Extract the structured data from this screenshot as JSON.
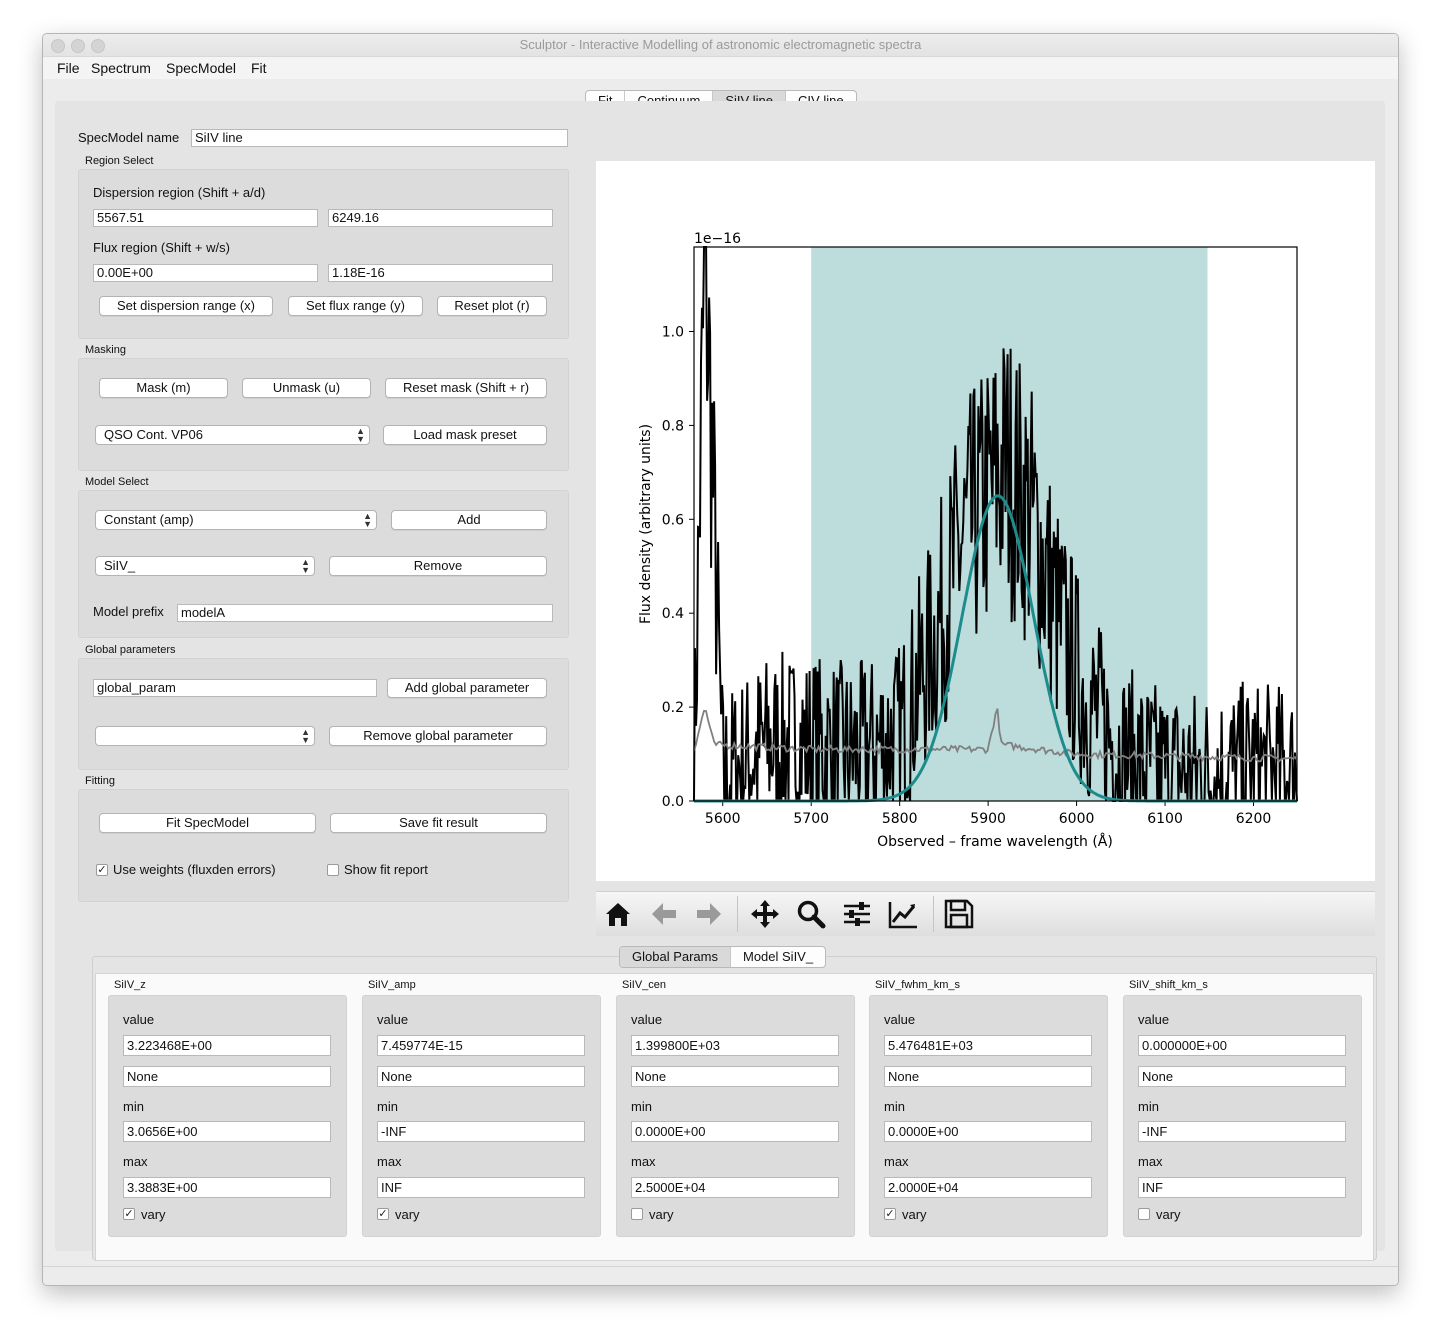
{
  "window": {
    "title": "Sculptor - Interactive Modelling of astronomic electromagnetic spectra"
  },
  "menu": [
    "File",
    "Spectrum",
    "SpecModel",
    "Fit"
  ],
  "tabs": [
    {
      "label": "Fit",
      "active": false
    },
    {
      "label": "Continuum",
      "active": false
    },
    {
      "label": "SiIV line",
      "active": true
    },
    {
      "label": "CIV line",
      "active": false
    }
  ],
  "specmodel": {
    "name_label": "SpecModel name",
    "name_value": "SiIV line"
  },
  "region": {
    "group_title": "Region Select",
    "dispersion_label": "Dispersion region (Shift + a/d)",
    "disp_min": "5567.51",
    "disp_max": "6249.16",
    "flux_label": "Flux region (Shift + w/s)",
    "flux_min": "0.00E+00",
    "flux_max": "1.18E-16",
    "set_disp_btn": "Set dispersion range (x)",
    "set_flux_btn": "Set flux range (y)",
    "reset_plot_btn": "Reset plot (r)"
  },
  "masking": {
    "group_title": "Masking",
    "mask_btn": "Mask (m)",
    "unmask_btn": "Unmask (u)",
    "reset_mask_btn": "Reset mask (Shift + r)",
    "preset_select": "QSO Cont. VP06",
    "load_preset_btn": "Load mask preset"
  },
  "model_select": {
    "group_title": "Model Select",
    "model_select": "Constant (amp)",
    "add_btn": "Add",
    "model_list_select": "SiIV_",
    "remove_btn": "Remove",
    "prefix_label": "Model prefix",
    "prefix_value": "modelA"
  },
  "global_params": {
    "group_title": "Global parameters",
    "param_name": "global_param",
    "add_btn": "Add global parameter",
    "param_select": "",
    "remove_btn": "Remove global parameter"
  },
  "fitting": {
    "group_title": "Fitting",
    "fit_btn": "Fit SpecModel",
    "save_btn": "Save fit result",
    "use_weights_label": "Use weights (fluxden errors)",
    "use_weights_checked": true,
    "show_report_label": "Show fit report",
    "show_report_checked": false
  },
  "toolbar": {
    "icons": [
      "home-icon",
      "back-arrow-icon",
      "forward-arrow-icon",
      "pan-icon",
      "zoom-icon",
      "configure-subplots-icon",
      "edit-axis-icon",
      "save-icon"
    ]
  },
  "bottom_tabs": [
    {
      "label": "Global Params",
      "active": true
    },
    {
      "label": "Model SiIV_",
      "active": false
    }
  ],
  "params": [
    {
      "title": "SiIV_z",
      "value_label": "value",
      "value": "3.223468E+00",
      "expr": "None",
      "min_label": "min",
      "min": "3.0656E+00",
      "max_label": "max",
      "max": "3.3883E+00",
      "vary_label": "vary",
      "vary": true
    },
    {
      "title": "SiIV_amp",
      "value_label": "value",
      "value": "7.459774E-15",
      "expr": "None",
      "min_label": "min",
      "min": "-INF",
      "max_label": "max",
      "max": "INF",
      "vary_label": "vary",
      "vary": true
    },
    {
      "title": "SiIV_cen",
      "value_label": "value",
      "value": "1.399800E+03",
      "expr": "None",
      "min_label": "min",
      "min": "0.0000E+00",
      "max_label": "max",
      "max": "2.5000E+04",
      "vary_label": "vary",
      "vary": false
    },
    {
      "title": "SiIV_fwhm_km_s",
      "value_label": "value",
      "value": "5.476481E+03",
      "expr": "None",
      "min_label": "min",
      "min": "0.0000E+00",
      "max_label": "max",
      "max": "2.0000E+04",
      "vary_label": "vary",
      "vary": true
    },
    {
      "title": "SiIV_shift_km_s",
      "value_label": "value",
      "value": "0.000000E+00",
      "expr": "None",
      "min_label": "min",
      "min": "-INF",
      "max_label": "max",
      "max": "INF",
      "vary_label": "vary",
      "vary": false
    }
  ],
  "chart_data": {
    "type": "line",
    "offset_text": "1e−16",
    "xlabel": "Observed – frame wavelength (Å)",
    "ylabel": "Flux density (arbitrary units)",
    "xlim": [
      5567.51,
      6249.16
    ],
    "ylim": [
      0.0,
      1.18
    ],
    "x_ticks": [
      5600,
      5700,
      5800,
      5900,
      6000,
      6100,
      6200
    ],
    "y_ticks": [
      "0.0",
      "0.2",
      "0.4",
      "0.6",
      "0.8",
      "1.0"
    ],
    "fit_region": [
      5700,
      6148
    ],
    "colors": {
      "region": "#bddcdc",
      "spectrum": "#000000",
      "error": "#808080",
      "model": "#1e8c8c"
    },
    "model": {
      "center": 5911,
      "amplitude": 0.65,
      "fwhm": 95
    },
    "spectrum_anchors": [
      [
        5567.51,
        0.05
      ],
      [
        5580,
        1.18
      ],
      [
        5600,
        0.05
      ],
      [
        5650,
        0.12
      ],
      [
        5700,
        0.12
      ],
      [
        5750,
        0.1
      ],
      [
        5800,
        0.14
      ],
      [
        5840,
        0.35
      ],
      [
        5870,
        0.55
      ],
      [
        5900,
        0.65
      ],
      [
        5920,
        0.72
      ],
      [
        5950,
        0.6
      ],
      [
        5980,
        0.38
      ],
      [
        6010,
        0.22
      ],
      [
        6050,
        0.1
      ],
      [
        6100,
        0.06
      ],
      [
        6150,
        0.06
      ],
      [
        6200,
        0.07
      ],
      [
        6249.16,
        0.06
      ]
    ],
    "error_anchors": [
      [
        5567.51,
        0.11
      ],
      [
        5580,
        0.2
      ],
      [
        5590,
        0.12
      ],
      [
        5700,
        0.11
      ],
      [
        5850,
        0.11
      ],
      [
        5900,
        0.11
      ],
      [
        5910,
        0.2
      ],
      [
        5915,
        0.12
      ],
      [
        6000,
        0.1
      ],
      [
        6249.16,
        0.09
      ]
    ]
  }
}
